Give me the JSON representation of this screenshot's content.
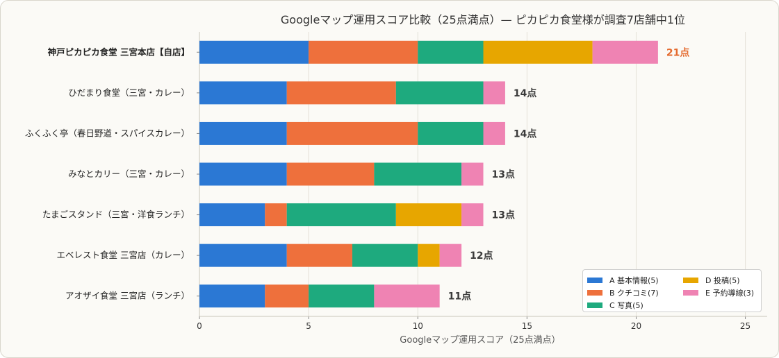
{
  "chart_data": {
    "type": "bar",
    "orientation": "horizontal",
    "stacked": true,
    "title": "Googleマップ運用スコア比較（25点満点）— ピカピカ食堂様が調査7店舗中1位",
    "xlabel": "Googleマップ運用スコア（25点満点）",
    "ylabel": "",
    "xlim": [
      0,
      26
    ],
    "xticks": [
      0,
      5,
      10,
      15,
      20,
      25
    ],
    "grid": "vertical",
    "legend_position": "bottom-right",
    "categories": [
      "神戸ピカピカ食堂 三宮本店【自店】",
      "ひだまり食堂（三宮・カレー）",
      "ふくふく亭（春日野道・スパイスカレー）",
      "みなとカリー（三宮・カレー）",
      "たまごスタンド（三宮・洋食ランチ）",
      "エベレスト食堂 三宮店（カレー）",
      "アオザイ食堂 三宮店（ランチ）"
    ],
    "highlight_index": 0,
    "series": [
      {
        "name": "A 基本情報(5)",
        "color": "#2b78d4",
        "values": [
          5,
          4,
          4,
          4,
          3,
          4,
          3
        ]
      },
      {
        "name": "B クチコミ(7)",
        "color": "#ee703c",
        "values": [
          5,
          5,
          6,
          4,
          1,
          3,
          2
        ]
      },
      {
        "name": "C 写真(5)",
        "color": "#1eaa7e",
        "values": [
          3,
          4,
          3,
          4,
          5,
          3,
          3
        ]
      },
      {
        "name": "D 投稿(5)",
        "color": "#e7a600",
        "values": [
          5,
          0,
          0,
          0,
          3,
          1,
          0
        ]
      },
      {
        "name": "E 予約導線(3)",
        "color": "#ef83b3",
        "values": [
          3,
          1,
          1,
          1,
          1,
          1,
          3
        ]
      }
    ],
    "total_labels": [
      "21点",
      "14点",
      "14点",
      "13点",
      "13点",
      "12点",
      "11点"
    ],
    "highlight_label_color": "#e46a2e"
  }
}
